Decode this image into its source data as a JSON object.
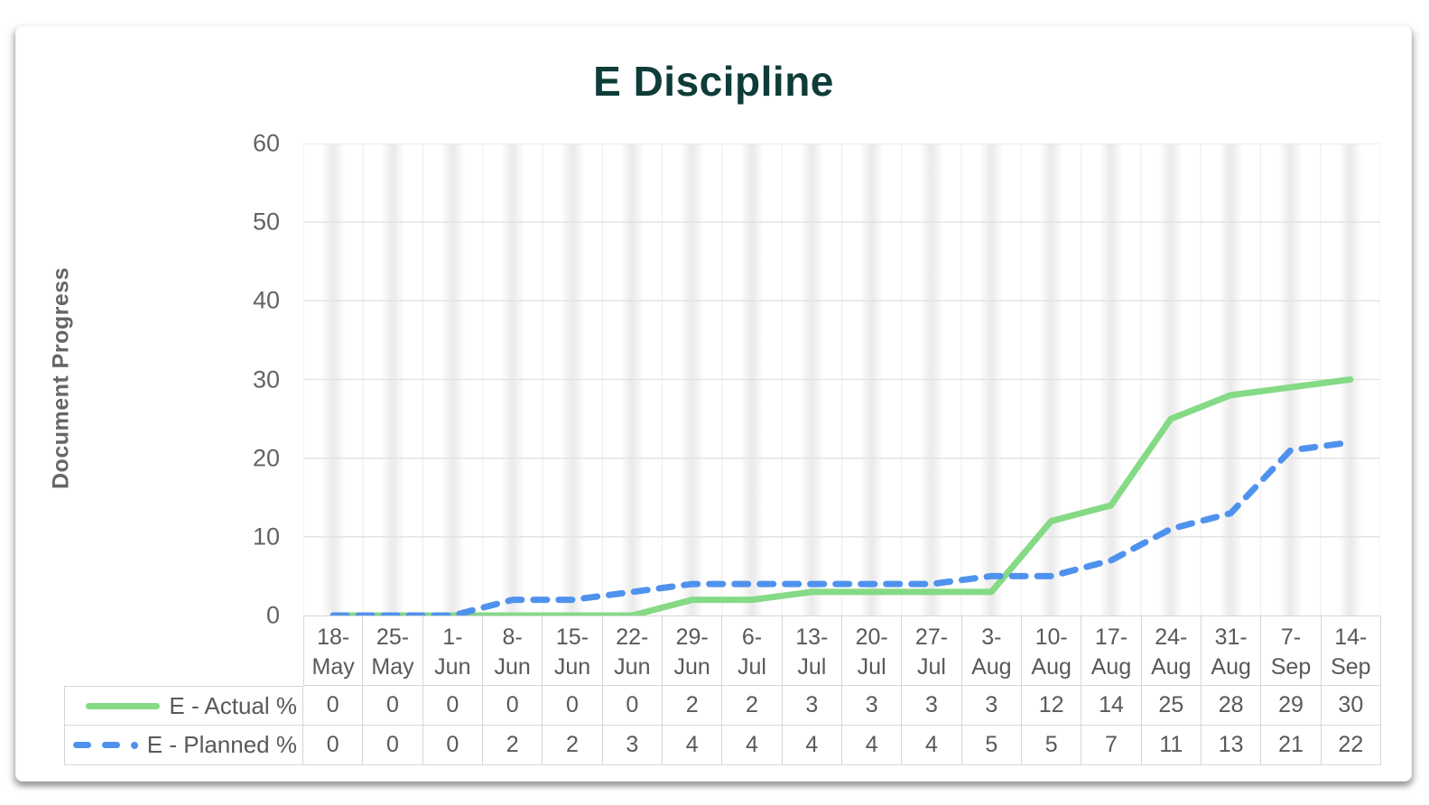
{
  "title": "E Discipline",
  "y_axis_title": "Document Progress",
  "colors": {
    "title_text": "#0e3c38",
    "axis_text": "#636363",
    "table_text": "#595959",
    "actual_line": "#85da85",
    "planned_line": "#4f92ee",
    "grid_vertical": "#ededed",
    "grid_horizontal": "#e2e2e2",
    "table_border": "#d6d6d6",
    "band_shade": "#e9e9e9"
  },
  "chart_data": {
    "type": "line",
    "title": "E Discipline",
    "xlabel": "",
    "ylabel": "Document Progress",
    "ylim": [
      0,
      60
    ],
    "yticks": [
      0,
      10,
      20,
      30,
      40,
      50,
      60
    ],
    "grid": true,
    "legend_position": "table-left",
    "categories": [
      "18-May",
      "25-May",
      "1-Jun",
      "8-Jun",
      "15-Jun",
      "22-Jun",
      "29-Jun",
      "6-Jul",
      "13-Jul",
      "20-Jul",
      "27-Jul",
      "3-Aug",
      "10-Aug",
      "17-Aug",
      "24-Aug",
      "31-Aug",
      "7-Sep",
      "14-Sep"
    ],
    "series": [
      {
        "name": "E - Actual %",
        "style": "solid",
        "color": "#85da85",
        "values": [
          0,
          0,
          0,
          0,
          0,
          0,
          2,
          2,
          3,
          3,
          3,
          3,
          12,
          14,
          25,
          28,
          29,
          30
        ]
      },
      {
        "name": "E - Planned %",
        "style": "dashed",
        "color": "#4f92ee",
        "values": [
          0,
          0,
          0,
          2,
          2,
          3,
          4,
          4,
          4,
          4,
          4,
          5,
          5,
          7,
          11,
          13,
          21,
          22
        ]
      }
    ]
  }
}
